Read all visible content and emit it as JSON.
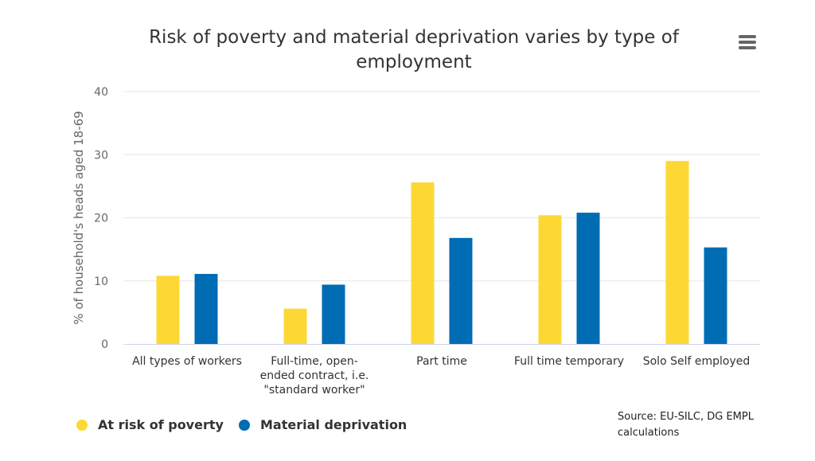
{
  "title": "Risk of poverty and material deprivation varies by type of employment",
  "menu_icon": "hamburger-menu-icon",
  "source": "Source: EU-SILC, DG EMPL calculations",
  "chart_data": {
    "type": "bar",
    "title": "Risk of poverty and material deprivation varies by type of employment",
    "xlabel": "",
    "ylabel": "% of household's heads aged 18-69",
    "ylim": [
      0,
      40
    ],
    "yticks": [
      0,
      10,
      20,
      30,
      40
    ],
    "grid": true,
    "legend_position": "bottom-left",
    "categories": [
      [
        "All types of workers"
      ],
      [
        "Full-time, open-",
        "ended contract, i.e.",
        "\"standard worker\""
      ],
      [
        "Part time"
      ],
      [
        "Full time temporary"
      ],
      [
        "Solo Self employed"
      ]
    ],
    "series": [
      {
        "name": "At risk of poverty",
        "color": "#FDD835",
        "values": [
          10.8,
          5.6,
          25.6,
          20.4,
          29.0
        ]
      },
      {
        "name": "Material deprivation",
        "color": "#006CB4",
        "values": [
          11.1,
          9.4,
          16.8,
          20.8,
          15.3
        ]
      }
    ]
  }
}
